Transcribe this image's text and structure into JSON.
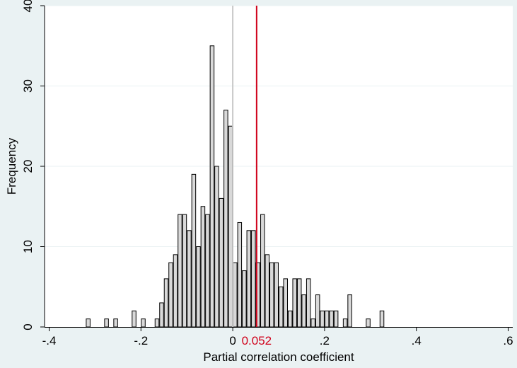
{
  "chart_data": {
    "type": "bar",
    "xlabel": "Partial correlation coefficient",
    "ylabel": "Frequency",
    "xlim": [
      -0.41,
      0.61
    ],
    "ylim": [
      0,
      40
    ],
    "bin_width": 0.01,
    "x_ticks": [
      {
        "value": -0.4,
        "label": "-.4"
      },
      {
        "value": -0.2,
        "label": "-.2"
      },
      {
        "value": 0,
        "label": "0"
      },
      {
        "value": 0.2,
        "label": ".2"
      },
      {
        "value": 0.4,
        "label": ".4"
      },
      {
        "value": 0.6,
        "label": ".6"
      }
    ],
    "y_ticks": [
      {
        "value": 0,
        "label": "0"
      },
      {
        "value": 10,
        "label": "10"
      },
      {
        "value": 20,
        "label": "20"
      },
      {
        "value": 30,
        "label": "30"
      },
      {
        "value": 40,
        "label": "40"
      }
    ],
    "grid": true,
    "reference_lines": [
      {
        "x": 0,
        "color": "#c8c8c8",
        "label": ""
      },
      {
        "x": 0.052,
        "color": "#d0021b",
        "label": "0.052"
      }
    ],
    "bins": [
      {
        "x": -0.32,
        "count": 1
      },
      {
        "x": -0.28,
        "count": 1
      },
      {
        "x": -0.26,
        "count": 1
      },
      {
        "x": -0.22,
        "count": 2
      },
      {
        "x": -0.2,
        "count": 1
      },
      {
        "x": -0.17,
        "count": 1
      },
      {
        "x": -0.16,
        "count": 3
      },
      {
        "x": -0.15,
        "count": 6
      },
      {
        "x": -0.14,
        "count": 8
      },
      {
        "x": -0.13,
        "count": 9
      },
      {
        "x": -0.12,
        "count": 14
      },
      {
        "x": -0.11,
        "count": 14
      },
      {
        "x": -0.1,
        "count": 12
      },
      {
        "x": -0.09,
        "count": 19
      },
      {
        "x": -0.08,
        "count": 10
      },
      {
        "x": -0.07,
        "count": 15
      },
      {
        "x": -0.06,
        "count": 14
      },
      {
        "x": -0.05,
        "count": 35
      },
      {
        "x": -0.04,
        "count": 20
      },
      {
        "x": -0.03,
        "count": 16
      },
      {
        "x": -0.02,
        "count": 27
      },
      {
        "x": -0.01,
        "count": 25
      },
      {
        "x": 0.0,
        "count": 8
      },
      {
        "x": 0.01,
        "count": 13
      },
      {
        "x": 0.02,
        "count": 7
      },
      {
        "x": 0.03,
        "count": 12
      },
      {
        "x": 0.04,
        "count": 12
      },
      {
        "x": 0.05,
        "count": 8
      },
      {
        "x": 0.06,
        "count": 14
      },
      {
        "x": 0.07,
        "count": 9
      },
      {
        "x": 0.08,
        "count": 8
      },
      {
        "x": 0.09,
        "count": 8
      },
      {
        "x": 0.1,
        "count": 5
      },
      {
        "x": 0.11,
        "count": 6
      },
      {
        "x": 0.12,
        "count": 2
      },
      {
        "x": 0.13,
        "count": 6
      },
      {
        "x": 0.14,
        "count": 6
      },
      {
        "x": 0.15,
        "count": 4
      },
      {
        "x": 0.16,
        "count": 6
      },
      {
        "x": 0.17,
        "count": 1
      },
      {
        "x": 0.18,
        "count": 4
      },
      {
        "x": 0.19,
        "count": 2
      },
      {
        "x": 0.2,
        "count": 2
      },
      {
        "x": 0.21,
        "count": 2
      },
      {
        "x": 0.22,
        "count": 2
      },
      {
        "x": 0.24,
        "count": 1
      },
      {
        "x": 0.25,
        "count": 4
      },
      {
        "x": 0.29,
        "count": 1
      },
      {
        "x": 0.32,
        "count": 2
      }
    ]
  }
}
